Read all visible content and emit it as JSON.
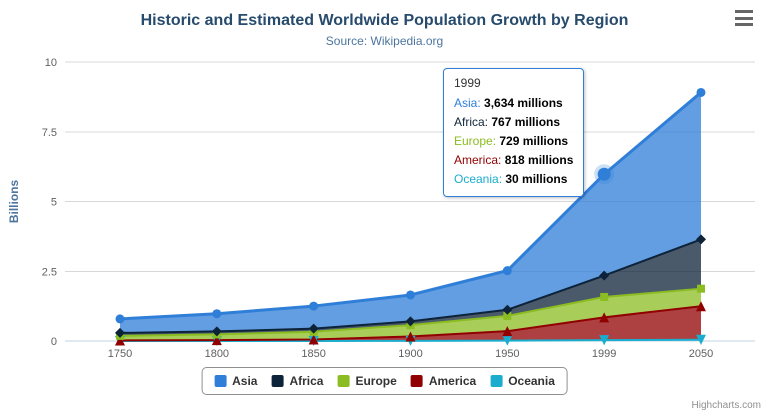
{
  "chart_data": {
    "type": "area",
    "stacked": true,
    "title": "Historic and Estimated Worldwide Population Growth by Region",
    "subtitle": "Source: Wikipedia.org",
    "categories": [
      "1750",
      "1800",
      "1850",
      "1900",
      "1950",
      "1999",
      "2050"
    ],
    "series": [
      {
        "name": "Asia",
        "color": "#2f7ed8",
        "marker": "circle",
        "values": [
          502,
          635,
          809,
          947,
          1402,
          3634,
          5268
        ]
      },
      {
        "name": "Africa",
        "color": "#0d233a",
        "marker": "diamond",
        "values": [
          106,
          107,
          111,
          133,
          221,
          767,
          1766
        ]
      },
      {
        "name": "Europe",
        "color": "#8bbc21",
        "marker": "square",
        "values": [
          163,
          203,
          276,
          408,
          547,
          729,
          628
        ]
      },
      {
        "name": "America",
        "color": "#910000",
        "marker": "triangle",
        "values": [
          18,
          31,
          54,
          156,
          339,
          818,
          1201
        ]
      },
      {
        "name": "Oceania",
        "color": "#1aadce",
        "marker": "triangle-down",
        "values": [
          2,
          2,
          2,
          6,
          13,
          30,
          46
        ]
      }
    ],
    "unit": "millions",
    "y_display_unit": "billions",
    "xlabel": "",
    "ylabel": "Billions",
    "yticks": [
      "0",
      "2.5",
      "5",
      "7.5",
      "10"
    ],
    "ylim": [
      0,
      10
    ],
    "grid": true,
    "legend_position": "bottom-center",
    "hover": {
      "series": "Asia",
      "category": "1999"
    }
  },
  "tooltip": {
    "header": "1999",
    "rows": [
      {
        "name": "Asia",
        "value": "3,634 millions"
      },
      {
        "name": "Africa",
        "value": "767 millions"
      },
      {
        "name": "Europe",
        "value": "729 millions"
      },
      {
        "name": "America",
        "value": "818 millions"
      },
      {
        "name": "Oceania",
        "value": "30 millions"
      }
    ]
  },
  "credits": {
    "label": "Highcharts.com"
  }
}
